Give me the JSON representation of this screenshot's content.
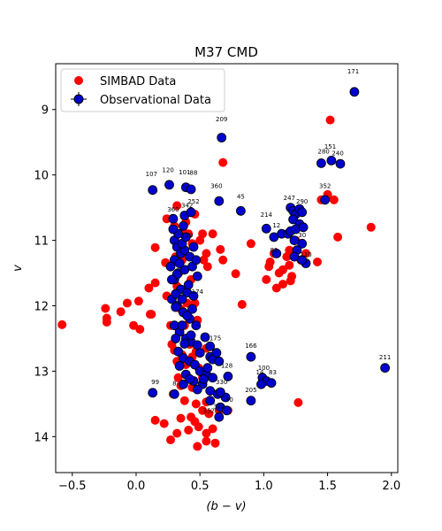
{
  "chart_data": {
    "type": "scatter",
    "title": "M37 CMD",
    "xlabel": "(b − v)",
    "ylabel": "v",
    "xlim": [
      -0.63,
      2.05
    ],
    "ylim": [
      14.55,
      8.3
    ],
    "y_inverted": true,
    "x_ticks": [
      -0.5,
      0.0,
      0.5,
      1.0,
      1.5,
      2.0
    ],
    "x_tick_labels": [
      "−0.5",
      "0.0",
      "0.5",
      "1.0",
      "1.5",
      "2.0"
    ],
    "y_ticks": [
      9,
      10,
      11,
      12,
      13,
      14
    ],
    "y_tick_labels": [
      "9",
      "10",
      "11",
      "12",
      "13",
      "14"
    ],
    "grid": false,
    "legend_position": "top-left",
    "series": [
      {
        "name": "SIMBAD Data",
        "color": "#ff0000",
        "marker": "circle",
        "points": [
          [
            -0.58,
            12.29
          ],
          [
            -0.24,
            12.04
          ],
          [
            -0.23,
            12.19
          ],
          [
            -0.23,
            12.25
          ],
          [
            -0.12,
            12.09
          ],
          [
            -0.07,
            11.96
          ],
          [
            -0.02,
            12.3
          ],
          [
            0.02,
            11.93
          ],
          [
            0.03,
            12.36
          ],
          [
            0.1,
            11.73
          ],
          [
            0.11,
            12.13
          ],
          [
            0.12,
            12.13
          ],
          [
            0.15,
            11.11
          ],
          [
            0.15,
            11.65
          ],
          [
            0.23,
            11.34
          ],
          [
            0.24,
            10.67
          ],
          [
            0.28,
            12.59
          ],
          [
            0.3,
            10.78
          ],
          [
            0.32,
            10.47
          ],
          [
            0.32,
            11.7
          ],
          [
            0.35,
            12.05
          ],
          [
            0.36,
            12.75
          ],
          [
            0.37,
            10.88
          ],
          [
            0.39,
            12.9
          ],
          [
            0.42,
            12.59
          ],
          [
            0.44,
            12.78
          ],
          [
            0.46,
            10.6
          ],
          [
            0.5,
            11.0
          ],
          [
            0.52,
            10.9
          ],
          [
            0.53,
            11.3
          ],
          [
            0.55,
            11.2
          ],
          [
            0.56,
            11.4
          ],
          [
            0.6,
            10.9
          ],
          [
            0.66,
            11.14
          ],
          [
            0.68,
            9.81
          ],
          [
            0.68,
            11.3
          ],
          [
            0.78,
            11.51
          ],
          [
            0.83,
            11.98
          ],
          [
            0.9,
            11.05
          ],
          [
            1.02,
            11.6
          ],
          [
            1.04,
            11.4
          ],
          [
            1.05,
            11.33
          ],
          [
            1.08,
            11.2
          ],
          [
            1.1,
            11.73
          ],
          [
            1.12,
            11.5
          ],
          [
            1.15,
            11.67
          ],
          [
            1.15,
            11.45
          ],
          [
            1.18,
            11.25
          ],
          [
            1.2,
            11.15
          ],
          [
            1.2,
            11.38
          ],
          [
            1.21,
            11.62
          ],
          [
            1.22,
            11.55
          ],
          [
            1.25,
            11.0
          ],
          [
            1.27,
            13.48
          ],
          [
            1.29,
            11.3
          ],
          [
            1.33,
            11.2
          ],
          [
            1.42,
            11.33
          ],
          [
            1.45,
            10.38
          ],
          [
            1.5,
            10.3
          ],
          [
            1.52,
            9.16
          ],
          [
            1.55,
            10.38
          ],
          [
            1.58,
            10.95
          ],
          [
            1.84,
            10.8
          ],
          [
            0.38,
            12.3
          ],
          [
            0.4,
            11.96
          ],
          [
            0.43,
            12.45
          ],
          [
            0.47,
            12.7
          ],
          [
            0.49,
            12.95
          ],
          [
            0.52,
            13.1
          ],
          [
            0.44,
            13.25
          ],
          [
            0.38,
            13.45
          ],
          [
            0.33,
            13.1
          ],
          [
            0.29,
            13.35
          ],
          [
            0.47,
            13.5
          ],
          [
            0.41,
            13.9
          ],
          [
            0.43,
            13.7
          ],
          [
            0.46,
            13.77
          ],
          [
            0.49,
            13.85
          ],
          [
            0.52,
            13.6
          ],
          [
            0.55,
            13.47
          ],
          [
            0.55,
            13.95
          ],
          [
            0.57,
            13.65
          ],
          [
            0.6,
            13.88
          ],
          [
            0.48,
            14.15
          ],
          [
            0.55,
            14.07
          ],
          [
            0.62,
            14.1
          ],
          [
            0.35,
            13.72
          ],
          [
            0.32,
            13.95
          ],
          [
            0.27,
            14.05
          ],
          [
            0.22,
            13.8
          ],
          [
            0.15,
            13.75
          ],
          [
            0.55,
            12.65
          ],
          [
            0.6,
            12.8
          ],
          [
            0.48,
            12.22
          ],
          [
            0.46,
            11.96
          ],
          [
            0.43,
            11.6
          ],
          [
            0.36,
            11.3
          ],
          [
            0.31,
            11.25
          ],
          [
            0.39,
            10.72
          ],
          [
            0.41,
            10.9
          ],
          [
            0.44,
            11.05
          ],
          [
            0.65,
            13.6
          ],
          [
            0.72,
            13.6
          ],
          [
            0.35,
            13.22
          ],
          [
            0.27,
            12.3
          ],
          [
            0.24,
            11.85
          ],
          [
            0.3,
            12.68
          ],
          [
            0.32,
            12.85
          ]
        ]
      },
      {
        "name": "Observational Data",
        "color": "#0000cc",
        "marker": "circle",
        "points": [
          [
            1.71,
            8.73
          ],
          [
            0.67,
            9.43
          ],
          [
            1.53,
            9.78
          ],
          [
            1.45,
            9.82
          ],
          [
            1.6,
            9.83
          ],
          [
            0.13,
            10.23
          ],
          [
            0.26,
            10.15
          ],
          [
            0.39,
            10.19
          ],
          [
            0.43,
            10.22
          ],
          [
            0.65,
            10.4
          ],
          [
            1.48,
            10.38
          ],
          [
            0.82,
            10.55
          ],
          [
            0.29,
            10.67
          ],
          [
            0.38,
            10.62
          ],
          [
            0.43,
            10.57
          ],
          [
            1.02,
            10.82
          ],
          [
            1.21,
            10.5
          ],
          [
            1.23,
            10.55
          ],
          [
            1.25,
            10.6
          ],
          [
            1.28,
            10.52
          ],
          [
            1.3,
            10.57
          ],
          [
            1.23,
            10.68
          ],
          [
            1.28,
            10.75
          ],
          [
            1.08,
            10.95
          ],
          [
            1.14,
            10.9
          ],
          [
            1.19,
            10.9
          ],
          [
            1.24,
            11.0
          ],
          [
            1.3,
            11.05
          ],
          [
            1.26,
            11.15
          ],
          [
            1.1,
            11.2
          ],
          [
            1.24,
            11.25
          ],
          [
            1.33,
            11.35
          ],
          [
            1.3,
            11.3
          ],
          [
            1.21,
            10.86
          ],
          [
            1.25,
            10.83
          ],
          [
            1.31,
            10.8
          ],
          [
            0.3,
            11.0
          ],
          [
            0.32,
            11.1
          ],
          [
            0.35,
            11.2
          ],
          [
            0.38,
            11.15
          ],
          [
            0.42,
            11.25
          ],
          [
            0.3,
            11.3
          ],
          [
            0.27,
            11.4
          ],
          [
            0.33,
            11.5
          ],
          [
            0.38,
            11.45
          ],
          [
            0.44,
            11.4
          ],
          [
            0.48,
            11.55
          ],
          [
            0.3,
            11.6
          ],
          [
            0.35,
            11.75
          ],
          [
            0.4,
            11.8
          ],
          [
            0.45,
            11.85
          ],
          [
            0.28,
            11.9
          ],
          [
            0.32,
            12.0
          ],
          [
            0.37,
            12.1
          ],
          [
            0.42,
            12.2
          ],
          [
            0.3,
            12.3
          ],
          [
            0.34,
            12.4
          ],
          [
            0.39,
            12.5
          ],
          [
            0.43,
            12.55
          ],
          [
            0.48,
            12.6
          ],
          [
            0.33,
            12.7
          ],
          [
            0.37,
            12.8
          ],
          [
            0.42,
            12.85
          ],
          [
            0.46,
            12.9
          ],
          [
            0.5,
            13.0
          ],
          [
            0.55,
            13.05
          ],
          [
            0.6,
            13.1
          ],
          [
            0.45,
            13.15
          ],
          [
            0.52,
            13.2
          ],
          [
            0.58,
            13.3
          ],
          [
            0.64,
            13.35
          ],
          [
            0.7,
            13.4
          ],
          [
            0.58,
            13.45
          ],
          [
            0.66,
            13.55
          ],
          [
            0.71,
            13.6
          ],
          [
            0.65,
            13.7
          ],
          [
            0.3,
            13.35
          ],
          [
            0.37,
            13.2
          ],
          [
            0.13,
            13.33
          ],
          [
            0.9,
            12.78
          ],
          [
            0.99,
            13.1
          ],
          [
            1.02,
            13.15
          ],
          [
            1.06,
            13.18
          ],
          [
            0.98,
            13.2
          ],
          [
            0.9,
            13.45
          ],
          [
            0.72,
            13.08
          ],
          [
            0.66,
            13.32
          ],
          [
            1.95,
            12.95
          ],
          [
            0.58,
            12.78
          ],
          [
            0.6,
            12.82
          ],
          [
            0.65,
            12.85
          ],
          [
            0.56,
            12.95
          ],
          [
            0.5,
            12.72
          ],
          [
            0.43,
            12.45
          ],
          [
            0.38,
            12.58
          ],
          [
            0.36,
            12.3
          ],
          [
            0.4,
            12.15
          ],
          [
            0.31,
            12.02
          ],
          [
            0.36,
            11.9
          ],
          [
            0.41,
            11.68
          ],
          [
            0.32,
            11.52
          ],
          [
            0.34,
            11.35
          ],
          [
            0.36,
            11.05
          ],
          [
            0.33,
            10.9
          ],
          [
            0.37,
            10.78
          ],
          [
            0.29,
            10.83
          ],
          [
            0.39,
            10.95
          ],
          [
            0.45,
            11.1
          ],
          [
            0.47,
            11.3
          ],
          [
            0.28,
            11.6
          ],
          [
            0.31,
            11.82
          ],
          [
            0.44,
            12.05
          ],
          [
            0.47,
            12.3
          ],
          [
            0.31,
            12.5
          ],
          [
            0.34,
            12.92
          ],
          [
            0.39,
            13.05
          ],
          [
            0.42,
            13.12
          ],
          [
            0.48,
            13.28
          ],
          [
            0.53,
            13.12
          ],
          [
            0.58,
            12.62
          ],
          [
            0.63,
            12.72
          ],
          [
            0.54,
            12.48
          ]
        ]
      }
    ],
    "point_labels": [
      {
        "text": "171",
        "x": 1.7,
        "y": 8.45
      },
      {
        "text": "209",
        "x": 0.67,
        "y": 9.18
      },
      {
        "text": "280",
        "x": 1.47,
        "y": 9.67
      },
      {
        "text": "151",
        "x": 1.52,
        "y": 9.6
      },
      {
        "text": "240",
        "x": 1.58,
        "y": 9.7
      },
      {
        "text": "107",
        "x": 0.12,
        "y": 10.02
      },
      {
        "text": "120",
        "x": 0.25,
        "y": 9.96
      },
      {
        "text": "101",
        "x": 0.38,
        "y": 9.99
      },
      {
        "text": "88",
        "x": 0.45,
        "y": 10.0
      },
      {
        "text": "360",
        "x": 0.63,
        "y": 10.2
      },
      {
        "text": "45",
        "x": 0.82,
        "y": 10.36
      },
      {
        "text": "352",
        "x": 1.48,
        "y": 10.2
      },
      {
        "text": "360",
        "x": 0.29,
        "y": 10.56
      },
      {
        "text": "342",
        "x": 0.4,
        "y": 10.5
      },
      {
        "text": "252",
        "x": 0.45,
        "y": 10.44
      },
      {
        "text": "247",
        "x": 1.2,
        "y": 10.38
      },
      {
        "text": "290",
        "x": 1.3,
        "y": 10.44
      },
      {
        "text": "214",
        "x": 1.02,
        "y": 10.64
      },
      {
        "text": "12",
        "x": 1.1,
        "y": 10.8
      },
      {
        "text": "30",
        "x": 1.3,
        "y": 10.95
      },
      {
        "text": "82",
        "x": 1.08,
        "y": 11.18
      },
      {
        "text": "110",
        "x": 1.33,
        "y": 11.25
      },
      {
        "text": "179",
        "x": 0.4,
        "y": 10.96
      },
      {
        "text": "174",
        "x": 0.48,
        "y": 11.82
      },
      {
        "text": "175",
        "x": 0.62,
        "y": 12.53
      },
      {
        "text": "166",
        "x": 0.9,
        "y": 12.64
      },
      {
        "text": "128",
        "x": 0.71,
        "y": 12.95
      },
      {
        "text": "100",
        "x": 1.0,
        "y": 12.98
      },
      {
        "text": "14",
        "x": 0.97,
        "y": 13.05
      },
      {
        "text": "83",
        "x": 1.07,
        "y": 13.05
      },
      {
        "text": "211",
        "x": 1.95,
        "y": 12.82
      },
      {
        "text": "99",
        "x": 0.15,
        "y": 13.2
      },
      {
        "text": "205",
        "x": 0.9,
        "y": 13.32
      },
      {
        "text": "30",
        "x": 0.73,
        "y": 13.47
      },
      {
        "text": "372",
        "x": 0.65,
        "y": 13.57
      },
      {
        "text": "352",
        "x": 0.57,
        "y": 13.64
      },
      {
        "text": "330",
        "x": 0.67,
        "y": 13.2
      },
      {
        "text": "8",
        "x": 0.3,
        "y": 13.22
      }
    ]
  }
}
